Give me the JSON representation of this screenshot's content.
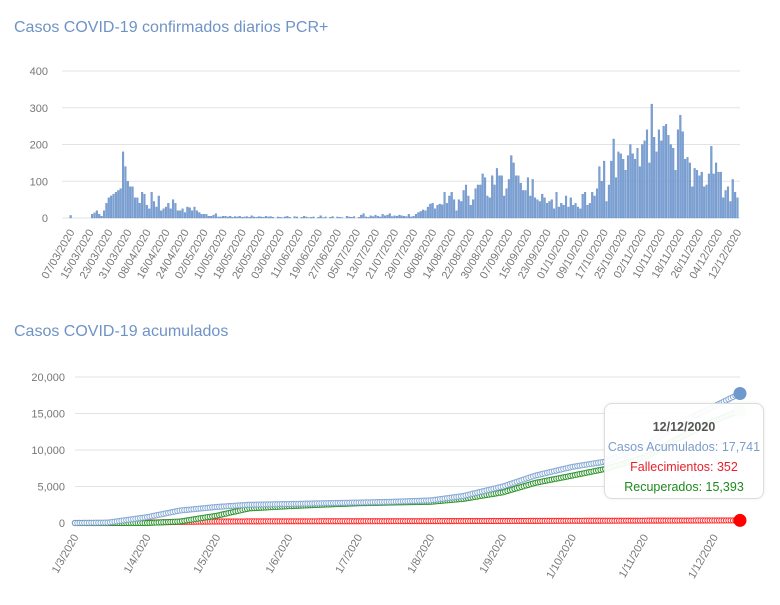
{
  "chart_data": [
    {
      "type": "bar",
      "title": "Casos COVID-19 confirmados diarios PCR+",
      "ylim": [
        0,
        400
      ],
      "yticks": [
        "0",
        "100",
        "200",
        "300",
        "400"
      ],
      "grid": true,
      "color": "#7ba0d4",
      "xtick_labels": [
        "07/03/2020",
        "15/03/2020",
        "23/03/2020",
        "31/03/2020",
        "08/04/2020",
        "16/04/2020",
        "24/04/2020",
        "02/05/2020",
        "10/05/2020",
        "18/05/2020",
        "26/05/2020",
        "03/06/2020",
        "11/06/2020",
        "19/06/2020",
        "27/06/2020",
        "05/07/2020",
        "13/07/2020",
        "21/07/2020",
        "29/07/2020",
        "06/08/2020",
        "14/08/2020",
        "22/08/2020",
        "30/08/2020",
        "07/09/2020",
        "15/09/2020",
        "23/09/2020",
        "01/10/2020",
        "09/10/2020",
        "17/10/2020",
        "25/10/2020",
        "02/11/2020",
        "10/11/2020",
        "18/11/2020",
        "26/11/2020",
        "04/12/2020",
        "12/12/2020"
      ],
      "values": [
        0,
        0,
        7,
        0,
        0,
        0,
        0,
        0,
        0,
        0,
        0,
        10,
        14,
        20,
        10,
        5,
        20,
        40,
        55,
        60,
        65,
        70,
        75,
        80,
        180,
        140,
        100,
        85,
        85,
        55,
        55,
        40,
        70,
        65,
        35,
        25,
        70,
        45,
        30,
        60,
        20,
        25,
        30,
        40,
        25,
        50,
        40,
        20,
        20,
        25,
        15,
        30,
        28,
        20,
        30,
        20,
        15,
        10,
        10,
        10,
        5,
        5,
        8,
        12,
        3,
        3,
        5,
        5,
        3,
        5,
        2,
        4,
        3,
        5,
        2,
        3,
        4,
        2,
        6,
        3,
        2,
        4,
        3,
        2,
        5,
        3,
        4,
        2,
        0,
        3,
        2,
        1,
        3,
        5,
        2,
        0,
        4,
        3,
        0,
        2,
        5,
        3,
        1,
        2,
        3,
        0,
        2,
        6,
        1,
        3,
        0,
        2,
        4,
        0,
        3,
        2,
        1,
        0,
        5,
        3,
        2,
        4,
        0,
        2,
        8,
        12,
        3,
        2,
        6,
        4,
        8,
        5,
        3,
        10,
        6,
        8,
        12,
        4,
        6,
        5,
        8,
        6,
        5,
        4,
        10,
        3,
        5,
        10,
        15,
        18,
        22,
        20,
        30,
        38,
        40,
        25,
        35,
        38,
        36,
        70,
        40,
        60,
        70,
        50,
        20,
        50,
        45,
        75,
        90,
        60,
        35,
        50,
        80,
        90,
        90,
        120,
        110,
        60,
        55,
        115,
        90,
        135,
        115,
        115,
        60,
        80,
        105,
        170,
        150,
        115,
        115,
        95,
        75,
        75,
        110,
        60,
        105,
        55,
        50,
        45,
        65,
        55,
        40,
        45,
        50,
        25,
        70,
        30,
        40,
        35,
        60,
        30,
        55,
        35,
        40,
        30,
        25,
        65,
        70,
        35,
        40,
        70,
        60,
        80,
        140,
        100,
        155,
        45,
        90,
        155,
        215,
        110,
        180,
        175,
        160,
        130,
        170,
        200,
        175,
        160,
        190,
        140,
        200,
        210,
        240,
        150,
        310,
        220,
        180,
        240,
        210,
        250,
        255,
        225,
        200,
        190,
        130,
        240,
        280,
        235,
        160,
        165,
        150,
        85,
        135,
        130,
        115,
        125,
        85,
        90,
        120,
        195,
        120,
        150,
        125,
        125,
        55,
        75,
        85,
        45,
        105,
        70,
        55
      ]
    },
    {
      "type": "line",
      "title": "Casos COVID-19 acumulados",
      "ylim": [
        0,
        20000
      ],
      "yticks": [
        "0",
        "5,000",
        "10,000",
        "15,000",
        "20,000"
      ],
      "grid": true,
      "xtick_labels": [
        "1/3/2020",
        "1/4/2020",
        "1/5/2020",
        "1/6/2020",
        "1/7/2020",
        "1/8/2020",
        "1/9/2020",
        "1/10/2020",
        "1/11/2020",
        "1/12/2020"
      ],
      "x": [
        "1/3/2020",
        "15/3/2020",
        "1/4/2020",
        "15/4/2020",
        "1/5/2020",
        "15/5/2020",
        "1/6/2020",
        "15/6/2020",
        "1/7/2020",
        "15/7/2020",
        "1/8/2020",
        "15/8/2020",
        "1/9/2020",
        "15/9/2020",
        "1/10/2020",
        "15/10/2020",
        "1/11/2020",
        "15/11/2020",
        "1/12/2020",
        "12/12/2020"
      ],
      "series": [
        {
          "name": "Casos Acumulados",
          "color": "#6f98cc",
          "values": [
            0,
            50,
            800,
            1700,
            2200,
            2500,
            2600,
            2700,
            2800,
            2900,
            3100,
            3700,
            5000,
            6500,
            7700,
            8400,
            10500,
            13500,
            16000,
            17741
          ]
        },
        {
          "name": "Fallecimientos",
          "color": "#ff0000",
          "values": [
            0,
            0,
            50,
            150,
            200,
            220,
            230,
            235,
            240,
            245,
            250,
            260,
            275,
            290,
            300,
            310,
            320,
            330,
            345,
            352
          ]
        },
        {
          "name": "Recuperados",
          "color": "#1e8c1e",
          "values": [
            0,
            0,
            0,
            200,
            1000,
            2000,
            2300,
            2500,
            2700,
            2800,
            2900,
            3300,
            4200,
            5500,
            6500,
            7400,
            9000,
            11500,
            14000,
            15393
          ]
        }
      ],
      "tooltip": {
        "date": "12/12/2020",
        "casos": "Casos Acumulados: 17,741",
        "fallecimientos": "Fallecimientos: 352",
        "recuperados": "Recuperados: 15,393"
      }
    }
  ]
}
